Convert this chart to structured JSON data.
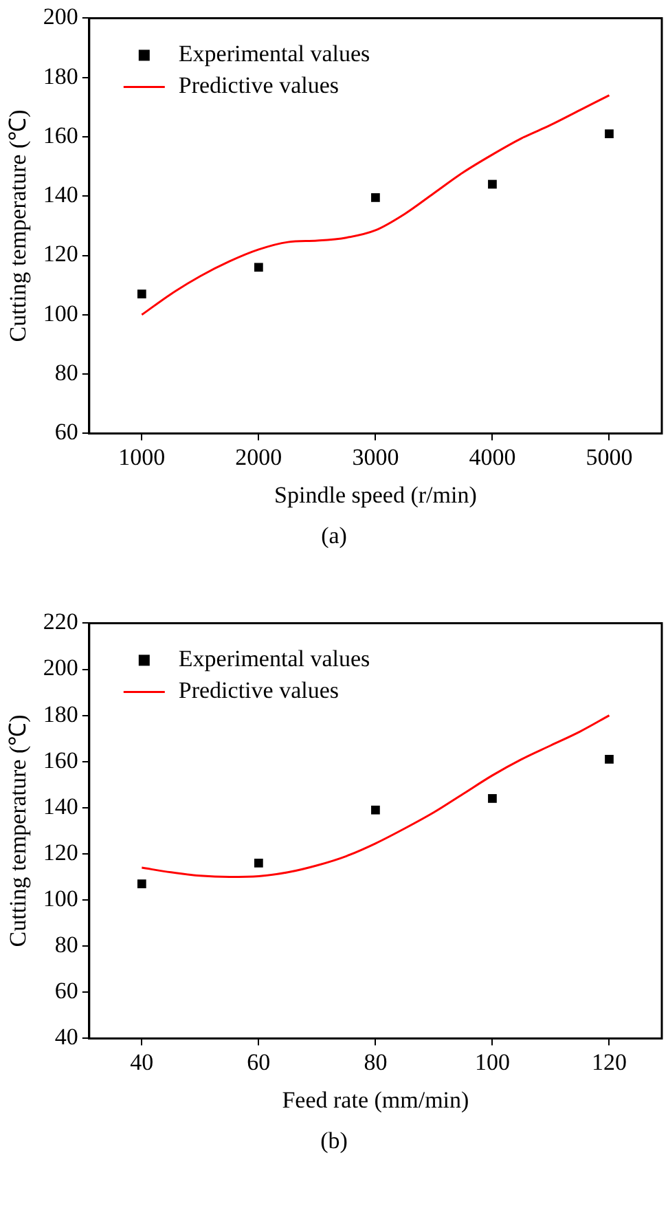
{
  "chart_data": [
    {
      "type": "scatter",
      "xlabel": "Spindle speed (r/min)",
      "ylabel": "Cutting temperature (℃)",
      "annotations": [
        "(a)"
      ],
      "xlim": [
        550,
        5450
      ],
      "xticks": [
        1000,
        2000,
        3000,
        4000,
        5000
      ],
      "ylim": [
        60,
        200
      ],
      "yticks": [
        60,
        80,
        100,
        120,
        140,
        160,
        180,
        200
      ],
      "grid": false,
      "legend": "top left",
      "series": [
        {
          "name": "Experimental values",
          "type": "scatter",
          "marker": "square",
          "color": "#000000",
          "x": [
            1000,
            2000,
            3000,
            4000,
            5000
          ],
          "values": [
            107,
            116,
            139.5,
            144,
            161
          ]
        },
        {
          "name": "Predictive values",
          "type": "line",
          "marker": "none",
          "line_style": "solid",
          "color": "#ff0000",
          "x": [
            1000,
            1250,
            1500,
            1750,
            2000,
            2250,
            2500,
            2750,
            3000,
            3250,
            3500,
            3750,
            4000,
            4250,
            4500,
            4750,
            5000
          ],
          "values": [
            100,
            107,
            113,
            118,
            122,
            124.5,
            125,
            126,
            128.5,
            134,
            141,
            148,
            154,
            159.5,
            164,
            169,
            174
          ]
        }
      ]
    },
    {
      "type": "scatter",
      "xlabel": "Feed rate (mm/min)",
      "ylabel": "Cutting temperature (℃)",
      "annotations": [
        "(b)"
      ],
      "xlim": [
        31,
        129
      ],
      "xticks": [
        40,
        60,
        80,
        100,
        120
      ],
      "ylim": [
        40,
        220
      ],
      "yticks": [
        40,
        60,
        80,
        100,
        120,
        140,
        160,
        180,
        200,
        220
      ],
      "grid": false,
      "legend": "top left",
      "series": [
        {
          "name": "Experimental values",
          "type": "scatter",
          "marker": "square",
          "color": "#000000",
          "x": [
            40,
            60,
            80,
            100,
            120
          ],
          "values": [
            107,
            116,
            139,
            144,
            161
          ]
        },
        {
          "name": "Predictive values",
          "type": "line",
          "marker": "none",
          "line_style": "solid",
          "color": "#ff0000",
          "x": [
            40,
            45,
            50,
            55,
            60,
            65,
            70,
            75,
            80,
            85,
            90,
            95,
            100,
            105,
            110,
            115,
            120
          ],
          "values": [
            114,
            112,
            110.5,
            110,
            110.3,
            112,
            115,
            119,
            124.5,
            131,
            138,
            146,
            154,
            161,
            167,
            173,
            180
          ]
        }
      ]
    }
  ]
}
